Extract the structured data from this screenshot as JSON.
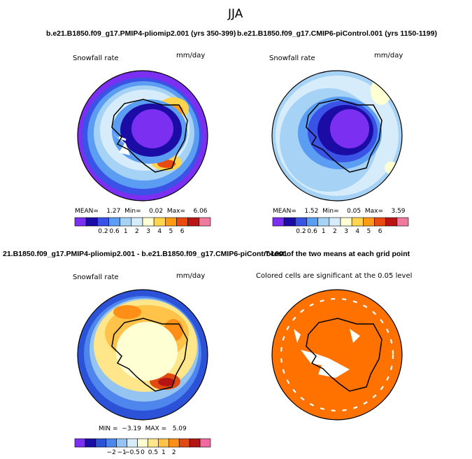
{
  "title": "JJA",
  "panels": {
    "case1": {
      "title": "b.e21.B1850.f09_g17.PMIP4-pliomip2.001 (yrs 350-399)",
      "variable": "Snowfall rate",
      "units": "mm/day",
      "stats": {
        "mean_label": "MEAN=",
        "mean": "1.27",
        "min_label": "Min=",
        "min": "0.02",
        "max_label": "Max=",
        "max": "6.06"
      }
    },
    "case2": {
      "title": "b.e21.B1850.f09_g17.CMIP6-piControl.001 (yrs 1150-1199)",
      "variable": "Snowfall rate",
      "units": "mm/day",
      "stats": {
        "mean_label": "MEAN=",
        "mean": "1.52",
        "min_label": "Min=",
        "min": "0.05",
        "max_label": "Max=",
        "max": "3.59"
      }
    },
    "diff": {
      "title": "21.B1850.f09_g17.PMIP4-pliomip2.001 - b.e21.B1850.f09_g17.CMIP6-piControl.001",
      "variable": "Snowfall rate",
      "units": "mm/day",
      "stats": {
        "min_label": "MIN =",
        "min": "−3.19",
        "max_label": "MAX =",
        "max": "5.09"
      }
    },
    "ttest": {
      "title": "T-test of the two means at each grid point",
      "note": "Colored cells are significant at the 0.05 level"
    }
  },
  "chart_data": [
    {
      "type": "heatmap",
      "name": "case1",
      "projection": "south polar stereographic",
      "colorbar": {
        "ticks": [
          "0.2",
          "0.6",
          "1",
          "2",
          "3",
          "4",
          "5",
          "6"
        ],
        "colors": [
          "#7b2ff0",
          "#1c0ca6",
          "#3a52e6",
          "#5b9df2",
          "#a6d3f5",
          "#d6ecfb",
          "#ffffd4",
          "#ffd54e",
          "#ff9a14",
          "#e84a10",
          "#bb1414",
          "#f07a9c"
        ]
      }
    },
    {
      "type": "heatmap",
      "name": "case2",
      "projection": "south polar stereographic",
      "colorbar": {
        "ticks": [
          "0.2",
          "0.6",
          "1",
          "2",
          "3",
          "4",
          "5",
          "6"
        ],
        "colors": [
          "#7b2ff0",
          "#1c0ca6",
          "#3a52e6",
          "#5b9df2",
          "#a6d3f5",
          "#d6ecfb",
          "#ffffd4",
          "#ffd54e",
          "#ff9a14",
          "#e84a10",
          "#bb1414",
          "#f07a9c"
        ]
      }
    },
    {
      "type": "heatmap",
      "name": "difference",
      "projection": "south polar stereographic",
      "colorbar": {
        "ticks": [
          "−2",
          "−1",
          "−0.5",
          "0",
          "0.5",
          "1",
          "2"
        ],
        "colors": [
          "#7b2ff0",
          "#1c0ca6",
          "#2c52d8",
          "#4e86ee",
          "#95c4f0",
          "#d6ecfb",
          "#ffffd4",
          "#ffe68a",
          "#ffc34a",
          "#ff8f16",
          "#e04a10",
          "#b51414",
          "#f06aa0"
        ]
      }
    },
    {
      "type": "heatmap",
      "name": "significance",
      "projection": "south polar stereographic",
      "significance_level": 0.05,
      "colors": {
        "significant": "#ff7200",
        "not_significant": "#ffffff"
      }
    }
  ]
}
